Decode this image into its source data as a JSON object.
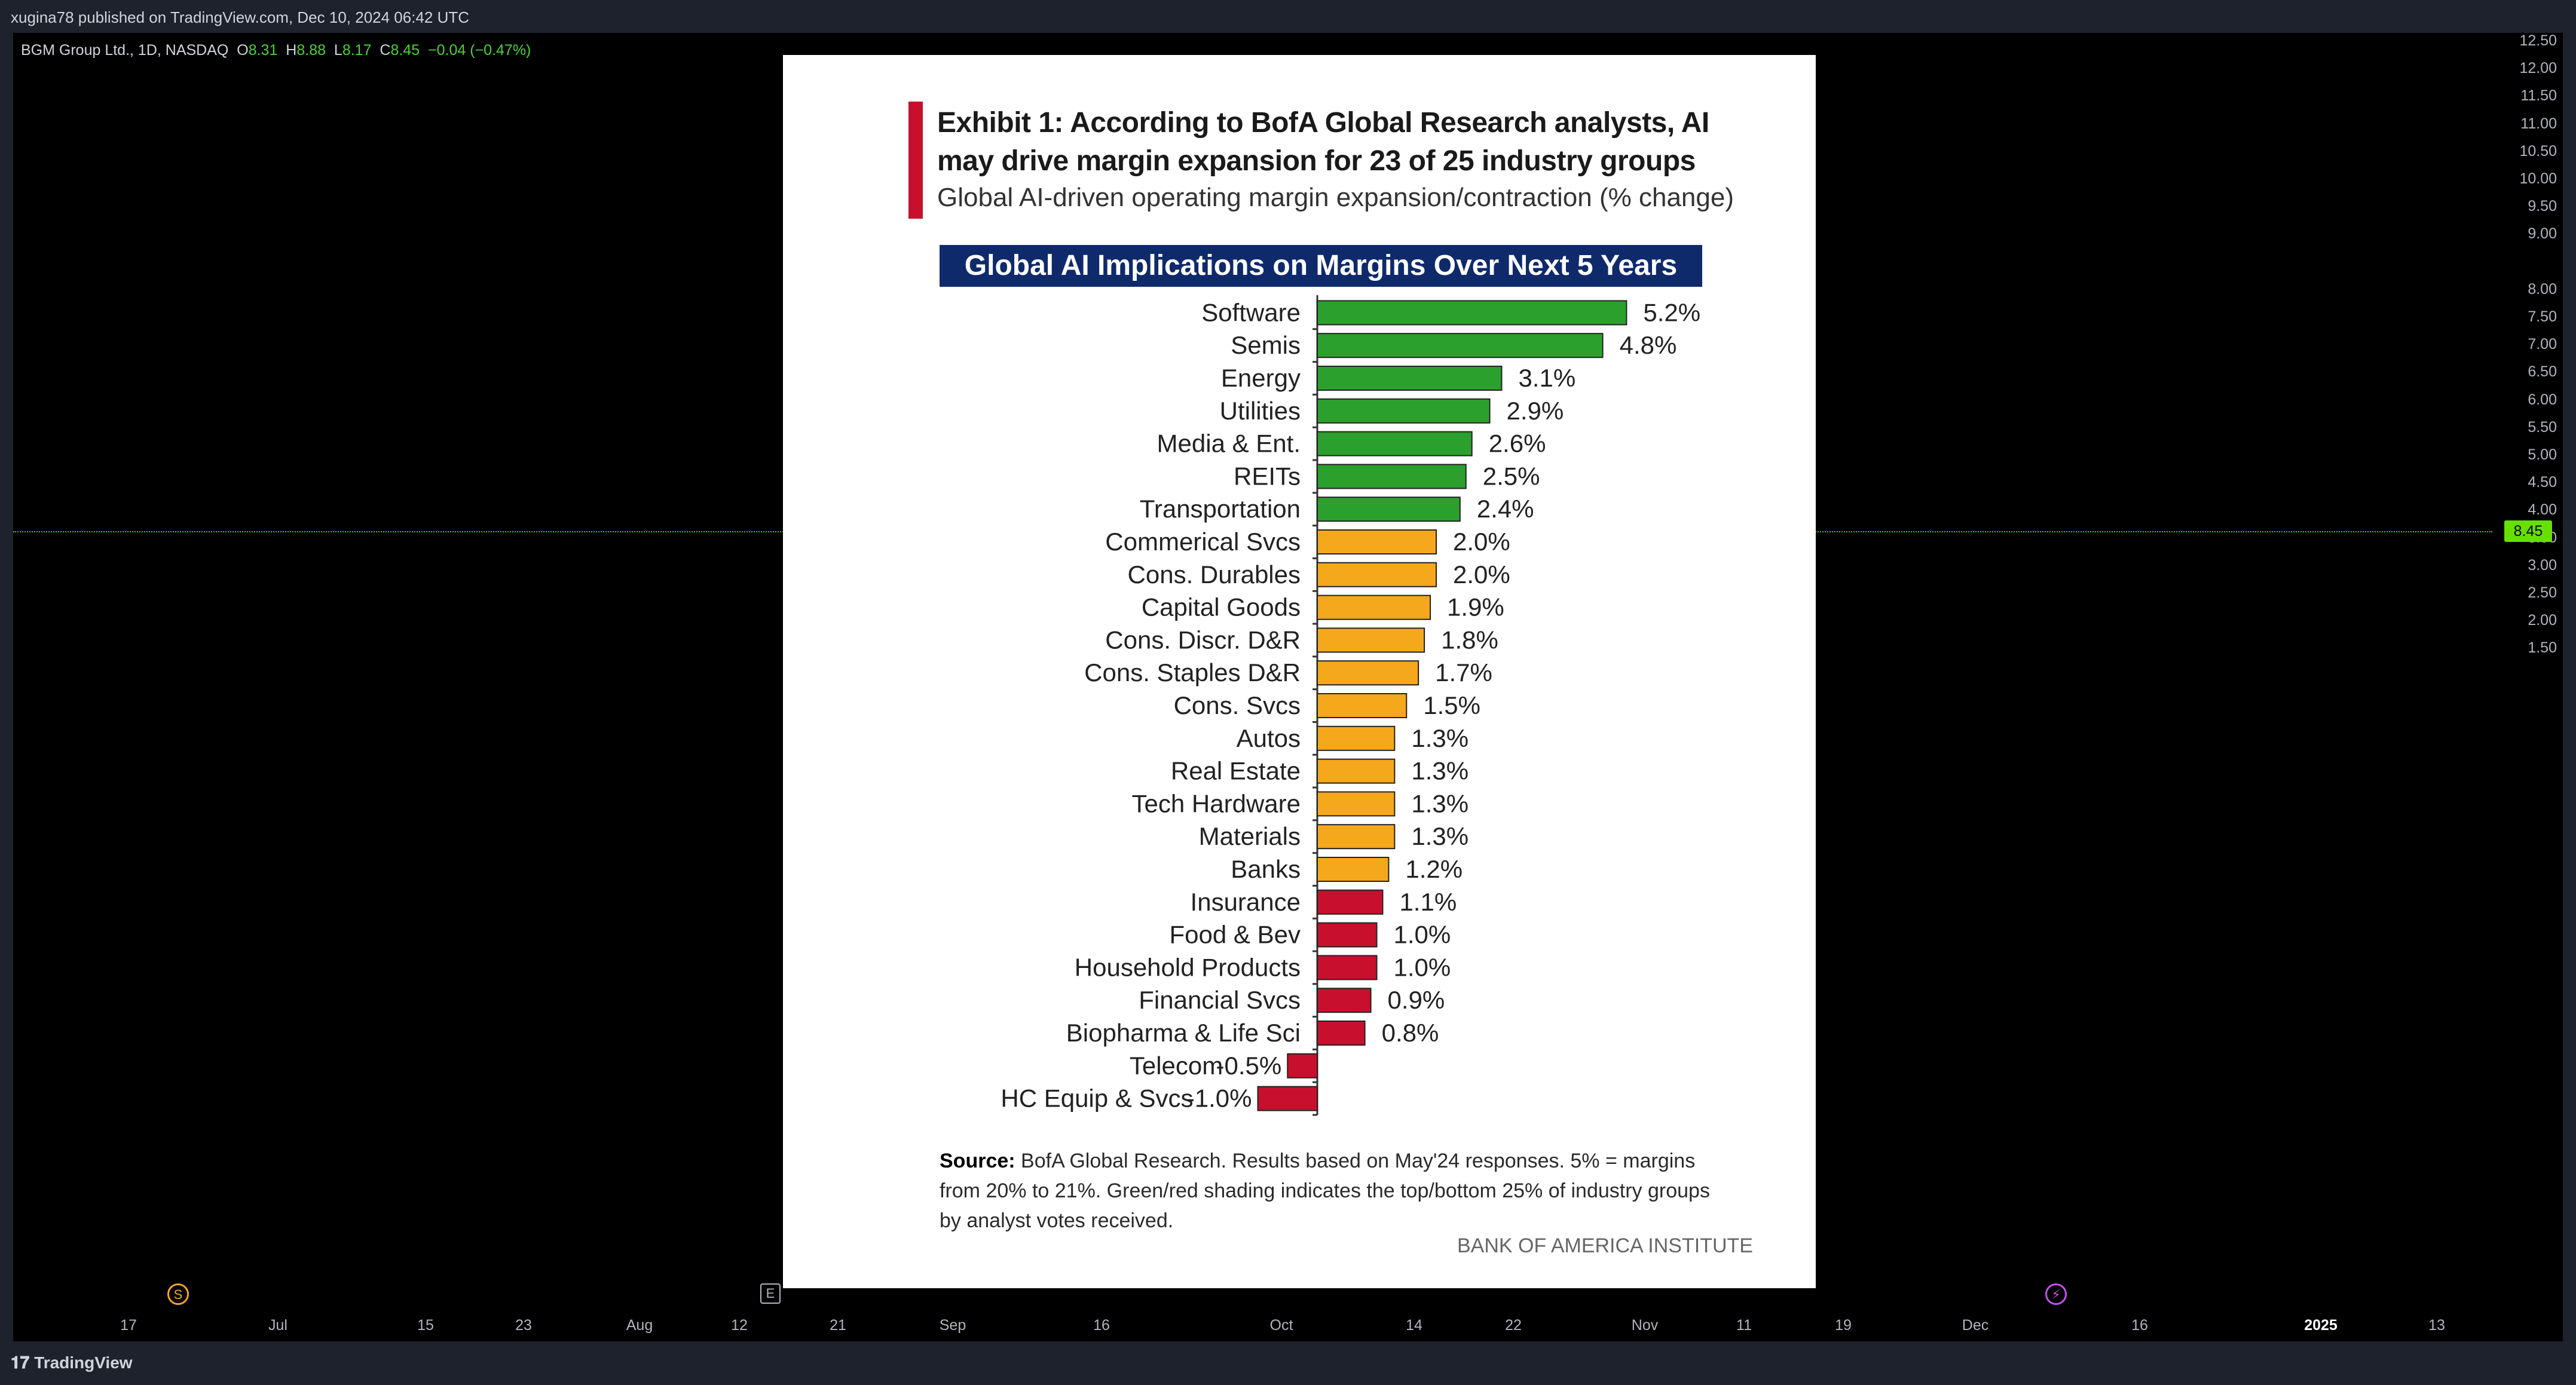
{
  "topbar": {
    "text": "xugina78 published on TradingView.com, Dec 10, 2024 06:42 UTC"
  },
  "legend": {
    "symbol": "BGM Group Ltd., 1D, NASDAQ",
    "o_label": "O",
    "o_value": "8.31",
    "h_label": "H",
    "h_value": "8.88",
    "l_label": "L",
    "l_value": "8.17",
    "c_label": "C",
    "c_value": "8.45",
    "change": "−0.04 (−0.47%)"
  },
  "price_axis": {
    "ticks": [
      "12.50",
      "12.00",
      "11.50",
      "11.00",
      "10.50",
      "10.00",
      "9.50",
      "9.00",
      "8.00",
      "7.50",
      "7.00",
      "6.50",
      "6.00",
      "5.50",
      "5.00",
      "4.50",
      "4.00",
      "3.50",
      "3.00",
      "2.50",
      "2.00",
      "1.50"
    ],
    "current_price": "8.45"
  },
  "time_axis": {
    "ticks": [
      {
        "label": "17"
      },
      {
        "label": "Jul"
      },
      {
        "label": "15"
      },
      {
        "label": "23"
      },
      {
        "label": "Aug"
      },
      {
        "label": "12"
      },
      {
        "label": "21"
      },
      {
        "label": "Sep"
      },
      {
        "label": "16"
      },
      {
        "label": "Oct"
      },
      {
        "label": "14"
      },
      {
        "label": "22"
      },
      {
        "label": "Nov"
      },
      {
        "label": "11"
      },
      {
        "label": "19"
      },
      {
        "label": "Dec"
      },
      {
        "label": "16"
      },
      {
        "label": "2025",
        "bold": true
      },
      {
        "label": "13"
      }
    ]
  },
  "markers": {
    "s": "S",
    "e": "E",
    "z": "⚡"
  },
  "bottombar": {
    "logo_mark": "𝟏𝟕",
    "logo_text": "TradingView"
  },
  "exhibit": {
    "title": "Exhibit 1: According to BofA Global Research analysts, AI may drive margin expansion for 23 of 25 industry groups",
    "subtitle": "Global AI-driven operating margin expansion/contraction (% change)",
    "source_label": "Source:",
    "source_text": "BofA Global Research. Results based on May'24 responses. 5% = margins from 20% to 21%. Green/red shading indicates the top/bottom 25% of industry groups by analyst votes received.",
    "credit": "BANK OF AMERICA INSTITUTE"
  },
  "colors": {
    "green": "#2ca02c",
    "orange": "#f5a81c",
    "red": "#c8102e"
  },
  "chart_data": {
    "type": "bar",
    "orientation": "horizontal",
    "title": "Global AI Implications on Margins Over Next 5 Years",
    "categories": [
      "Software",
      "Semis",
      "Energy",
      "Utilities",
      "Media & Ent.",
      "REITs",
      "Transportation",
      "Commerical Svcs",
      "Cons. Durables",
      "Capital Goods",
      "Cons. Discr. D&R",
      "Cons. Staples D&R",
      "Cons. Svcs",
      "Autos",
      "Real Estate",
      "Tech Hardware",
      "Materials",
      "Banks",
      "Insurance",
      "Food & Bev",
      "Household Products",
      "Financial Svcs",
      "Biopharma & Life Sci",
      "Telecom",
      "HC Equip & Svcs"
    ],
    "values": [
      5.2,
      4.8,
      3.1,
      2.9,
      2.6,
      2.5,
      2.4,
      2.0,
      2.0,
      1.9,
      1.8,
      1.7,
      1.5,
      1.3,
      1.3,
      1.3,
      1.3,
      1.2,
      1.1,
      1.0,
      1.0,
      0.9,
      0.8,
      -0.5,
      -1.0
    ],
    "labels": [
      "5.2%",
      "4.8%",
      "3.1%",
      "2.9%",
      "2.6%",
      "2.5%",
      "2.4%",
      "2.0%",
      "2.0%",
      "1.9%",
      "1.8%",
      "1.7%",
      "1.5%",
      "1.3%",
      "1.3%",
      "1.3%",
      "1.3%",
      "1.2%",
      "1.1%",
      "1.0%",
      "1.0%",
      "0.9%",
      "0.8%",
      "-0.5%",
      "-1.0%"
    ],
    "groups": [
      "green",
      "green",
      "green",
      "green",
      "green",
      "green",
      "green",
      "orange",
      "orange",
      "orange",
      "orange",
      "orange",
      "orange",
      "orange",
      "orange",
      "orange",
      "orange",
      "orange",
      "red",
      "red",
      "red",
      "red",
      "red",
      "red",
      "red"
    ]
  }
}
